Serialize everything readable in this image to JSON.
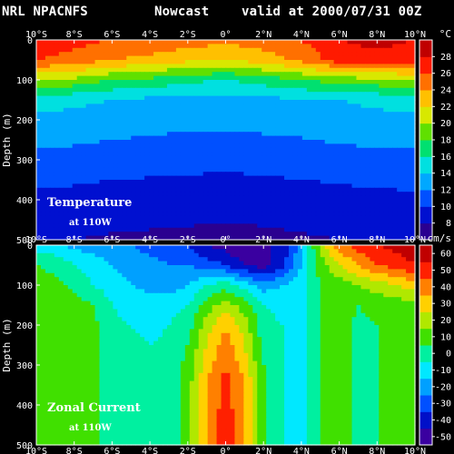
{
  "header": {
    "source": "NRL NPACNFS",
    "type": "Nowcast",
    "valid": "valid at 2000/07/31 00Z"
  },
  "colors": {
    "background": "#000000",
    "temperature_scale": [
      "#2a0090",
      "#0010d0",
      "#0050ff",
      "#00a8ff",
      "#00e0e0",
      "#00e070",
      "#60e000",
      "#d8e800",
      "#ffc000",
      "#ff7000",
      "#ff1a00",
      "#c00000"
    ],
    "current_scale": [
      "#3a00a0",
      "#0010c8",
      "#0050ff",
      "#00a0ff",
      "#00e8ff",
      "#00f0a0",
      "#40e000",
      "#b0e800",
      "#ffd000",
      "#ff8000",
      "#ff2000",
      "#c00000"
    ]
  },
  "chart_data": [
    {
      "type": "heatmap",
      "title": "Temperature",
      "subtitle": "at 110W",
      "ylabel": "Depth  (m)",
      "units": "°C",
      "xlim": [
        -10,
        10
      ],
      "ylim": [
        0,
        500
      ],
      "y_reversed": true,
      "xticks": [
        "10°S",
        "8°S",
        "6°S",
        "4°S",
        "2°S",
        "0°",
        "2°N",
        "4°N",
        "6°N",
        "8°N",
        "10°N"
      ],
      "yticks": [
        "0",
        "100",
        "200",
        "300",
        "400",
        "500"
      ],
      "colorbar_ticks": [
        "8",
        "10",
        "12",
        "14",
        "16",
        "18",
        "20",
        "22",
        "24",
        "26",
        "28"
      ],
      "colorbar_range": [
        6,
        30
      ],
      "x": [
        -10,
        -8,
        -6,
        -4,
        -2,
        0,
        2,
        4,
        6,
        8,
        10
      ],
      "depth": [
        0,
        50,
        100,
        150,
        200,
        250,
        300,
        350,
        400,
        450,
        500
      ],
      "values": [
        [
          27,
          26.5,
          26,
          25.5,
          25,
          24.5,
          25,
          26,
          28,
          28.5,
          28
        ],
        [
          26,
          25.5,
          24,
          23.5,
          22.5,
          22,
          23,
          24.5,
          27,
          27.5,
          27
        ],
        [
          20,
          19.5,
          18,
          17.5,
          16.5,
          16,
          17,
          18,
          19,
          19.5,
          20
        ],
        [
          15,
          14.5,
          14,
          13.5,
          13.3,
          13.2,
          13.5,
          13.8,
          14,
          14.5,
          15
        ],
        [
          13.5,
          13.3,
          13,
          12.8,
          12.6,
          12.5,
          12.7,
          12.9,
          13.2,
          13.4,
          13.5
        ],
        [
          12.5,
          12.3,
          12,
          11.8,
          11.6,
          11.5,
          11.7,
          11.9,
          12.2,
          12.4,
          12.5
        ],
        [
          11.5,
          11.3,
          11,
          10.8,
          10.6,
          10.5,
          10.7,
          10.9,
          11.2,
          11.4,
          11.5
        ],
        [
          10.5,
          10.3,
          10,
          9.9,
          9.8,
          9.7,
          9.8,
          10,
          10.2,
          10.4,
          10.5
        ],
        [
          9.5,
          9.3,
          9.1,
          9,
          8.9,
          8.8,
          8.9,
          9.1,
          9.3,
          9.5,
          9.6
        ],
        [
          8.8,
          8.6,
          8.4,
          8.3,
          8.2,
          8.1,
          8.2,
          8.4,
          8.6,
          8.8,
          8.9
        ],
        [
          8.2,
          8,
          7.8,
          7.7,
          7.6,
          7.5,
          7.6,
          7.8,
          8,
          8.2,
          8.3
        ]
      ]
    },
    {
      "type": "heatmap",
      "title": "Zonal Current",
      "subtitle": "at 110W",
      "ylabel": "Depth  (m)",
      "units": "cm/s",
      "xlim": [
        -10,
        10
      ],
      "ylim": [
        0,
        500
      ],
      "y_reversed": true,
      "xticks": [
        "10°S",
        "8°S",
        "6°S",
        "4°S",
        "2°S",
        "0°",
        "2°N",
        "4°N",
        "6°N",
        "8°N",
        "10°N"
      ],
      "yticks": [
        "0",
        "100",
        "200",
        "300",
        "400",
        "500"
      ],
      "colorbar_ticks": [
        "60",
        "50",
        "40",
        "30",
        "20",
        "10",
        "0",
        "-10",
        "-20",
        "-30",
        "-40",
        "-50"
      ],
      "colorbar_range": [
        -55,
        65
      ],
      "x": [
        -10,
        -9,
        -8,
        -7,
        -6,
        -5,
        -4,
        -3,
        -2,
        -1,
        0,
        1,
        2,
        3,
        4,
        5,
        6,
        7,
        8,
        9,
        10
      ],
      "depth": [
        0,
        50,
        100,
        150,
        200,
        250,
        300,
        350,
        400,
        450,
        500
      ],
      "values": [
        [
          -10,
          -12,
          -18,
          -20,
          -22,
          -25,
          -28,
          -30,
          -35,
          -45,
          -50,
          -55,
          -50,
          -40,
          -20,
          20,
          40,
          50,
          55,
          58,
          60
        ],
        [
          5,
          2,
          -5,
          -10,
          -15,
          -20,
          -22,
          -25,
          -25,
          -30,
          -35,
          -45,
          -50,
          -40,
          -15,
          10,
          25,
          35,
          45,
          50,
          55
        ],
        [
          10,
          8,
          3,
          -5,
          -10,
          -15,
          -18,
          -20,
          -15,
          -5,
          0,
          -10,
          -20,
          -15,
          -10,
          5,
          10,
          15,
          20,
          25,
          30
        ],
        [
          10,
          12,
          10,
          5,
          -5,
          -8,
          -10,
          -8,
          -5,
          10,
          20,
          10,
          -5,
          -10,
          -8,
          5,
          10,
          5,
          8,
          10,
          12
        ],
        [
          10,
          12,
          12,
          8,
          -3,
          -5,
          -8,
          -5,
          0,
          20,
          35,
          20,
          0,
          -5,
          -8,
          5,
          10,
          3,
          5,
          8,
          10
        ],
        [
          10,
          12,
          12,
          10,
          -2,
          -3,
          -5,
          -3,
          5,
          25,
          40,
          25,
          0,
          -5,
          -8,
          5,
          10,
          3,
          5,
          8,
          10
        ],
        [
          10,
          12,
          12,
          10,
          -2,
          -5,
          -5,
          -2,
          8,
          30,
          45,
          30,
          5,
          -5,
          -8,
          5,
          10,
          3,
          5,
          8,
          10
        ],
        [
          10,
          12,
          12,
          10,
          -2,
          -5,
          -5,
          -2,
          10,
          35,
          50,
          35,
          8,
          -5,
          -8,
          5,
          10,
          3,
          5,
          8,
          10
        ],
        [
          10,
          12,
          12,
          10,
          -2,
          -5,
          -5,
          -2,
          10,
          35,
          50,
          35,
          8,
          -5,
          -8,
          5,
          10,
          3,
          5,
          8,
          10
        ],
        [
          10,
          12,
          12,
          10,
          -2,
          -5,
          -5,
          -2,
          10,
          35,
          52,
          35,
          8,
          -5,
          -8,
          5,
          10,
          3,
          5,
          8,
          10
        ],
        [
          10,
          12,
          12,
          10,
          -2,
          -5,
          -5,
          -2,
          10,
          35,
          52,
          35,
          8,
          -5,
          -8,
          5,
          10,
          3,
          5,
          8,
          10
        ]
      ]
    }
  ]
}
